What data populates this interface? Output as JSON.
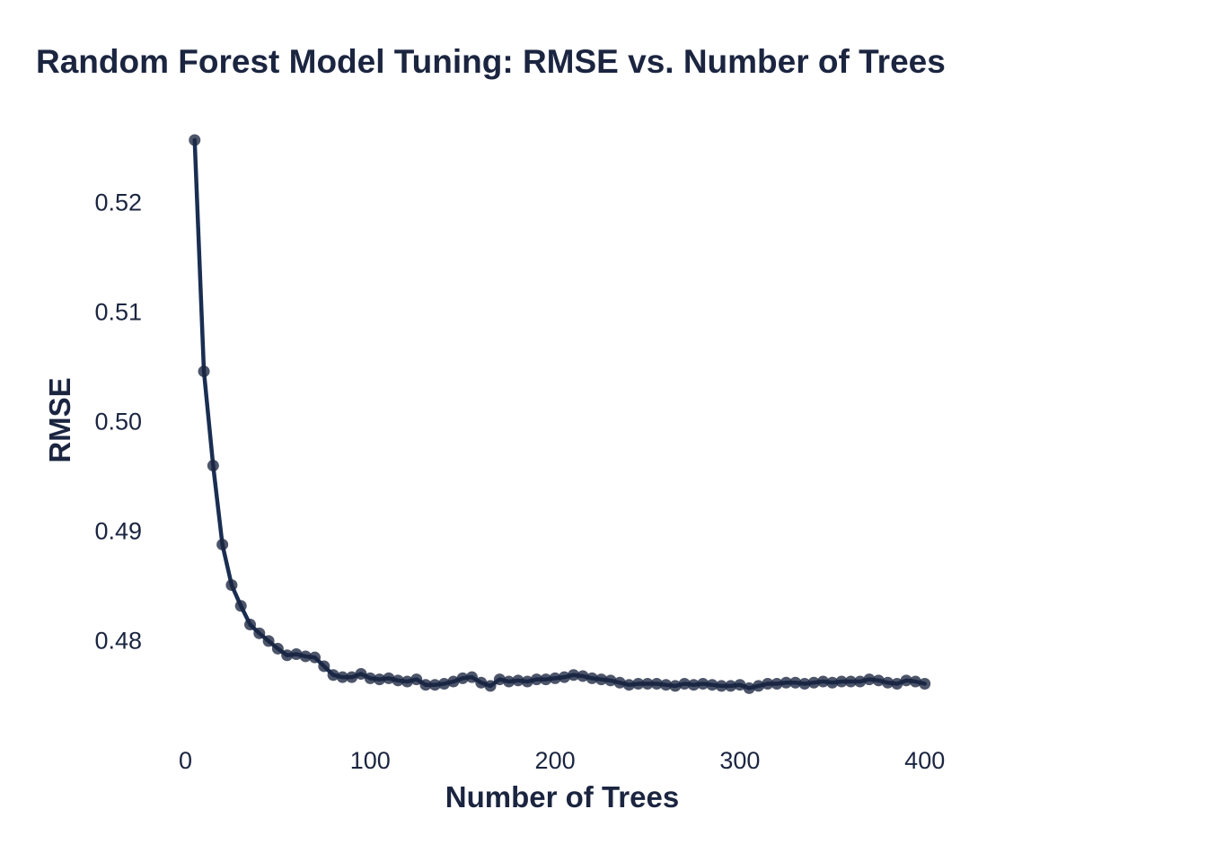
{
  "chart_data": {
    "type": "line",
    "title": "Random Forest Model Tuning: RMSE vs. Number of Trees",
    "xlabel": "Number of Trees",
    "ylabel": "RMSE",
    "xlim": [
      -8,
      405
    ],
    "ylim": [
      0.4735,
      0.5265
    ],
    "x_ticks": [
      0,
      100,
      200,
      300,
      400
    ],
    "x_tick_labels": [
      "0",
      "100",
      "200",
      "300",
      "400"
    ],
    "y_ticks": [
      0.48,
      0.49,
      0.5,
      0.51,
      0.52
    ],
    "y_tick_labels": [
      "0.48",
      "0.49",
      "0.50",
      "0.51",
      "0.52"
    ],
    "grid": false,
    "legend": "none",
    "line_color": "#1a2e52",
    "point_color": "#1b2540",
    "series": [
      {
        "x": [
          5,
          10,
          15,
          20,
          25,
          30,
          35,
          40,
          45,
          50,
          55,
          60,
          65,
          70,
          75,
          80,
          85,
          90,
          95,
          100,
          105,
          110,
          115,
          120,
          125,
          130,
          135,
          140,
          145,
          150,
          155,
          160,
          165,
          170,
          175,
          180,
          185,
          190,
          195,
          200,
          205,
          210,
          215,
          220,
          225,
          230,
          235,
          240,
          245,
          250,
          255,
          260,
          265,
          270,
          275,
          280,
          285,
          290,
          295,
          300,
          305,
          310,
          315,
          320,
          325,
          330,
          335,
          340,
          345,
          350,
          355,
          360,
          365,
          370,
          375,
          380,
          385,
          390,
          395,
          400
        ],
        "y": [
          0.5256,
          0.5045,
          0.4959,
          0.4887,
          0.485,
          0.4831,
          0.4814,
          0.4806,
          0.4799,
          0.4792,
          0.4786,
          0.4787,
          0.4785,
          0.4784,
          0.4776,
          0.4768,
          0.4766,
          0.4766,
          0.4769,
          0.4765,
          0.4764,
          0.4765,
          0.4763,
          0.4762,
          0.4764,
          0.4759,
          0.4759,
          0.476,
          0.4762,
          0.4765,
          0.4766,
          0.4761,
          0.4758,
          0.4764,
          0.4762,
          0.4763,
          0.4762,
          0.4764,
          0.4764,
          0.4765,
          0.4766,
          0.4768,
          0.4767,
          0.4765,
          0.4764,
          0.4763,
          0.4761,
          0.4759,
          0.476,
          0.476,
          0.476,
          0.4759,
          0.4758,
          0.476,
          0.4759,
          0.476,
          0.4759,
          0.4758,
          0.4758,
          0.4759,
          0.4756,
          0.4758,
          0.476,
          0.476,
          0.4761,
          0.4761,
          0.476,
          0.4761,
          0.4762,
          0.4761,
          0.4762,
          0.4762,
          0.4762,
          0.4764,
          0.4763,
          0.4761,
          0.476,
          0.4763,
          0.4762,
          0.476
        ]
      }
    ]
  }
}
